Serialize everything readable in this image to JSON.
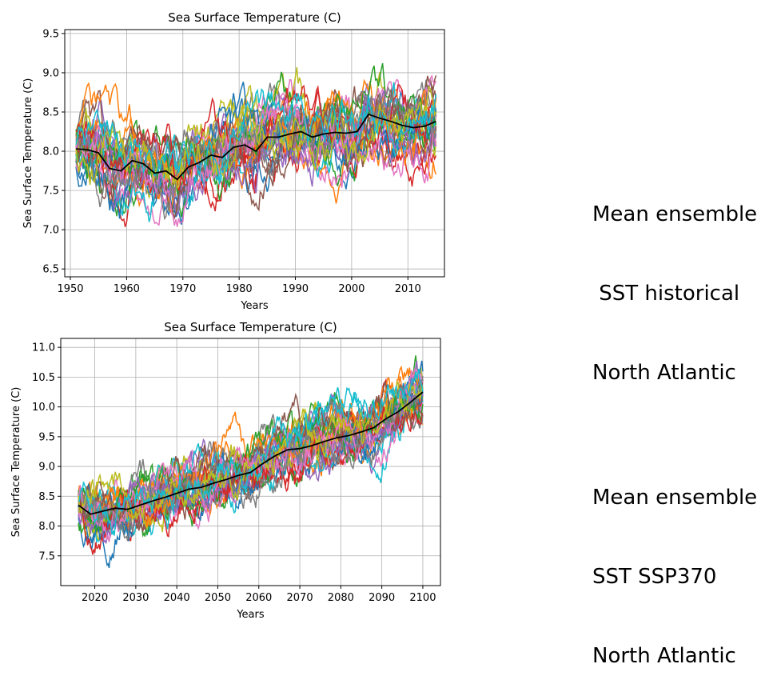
{
  "chart_data": [
    {
      "type": "line",
      "title": "Sea Surface Temperature (C)",
      "xlabel": "Years",
      "ylabel": "Sea Surface Temperature (C)",
      "xlim": [
        1949,
        2016.5
      ],
      "ylim": [
        6.4,
        9.55
      ],
      "xticks": [
        1950,
        1960,
        1970,
        1980,
        1990,
        2000,
        2010
      ],
      "yticks": [
        6.5,
        7.0,
        7.5,
        8.0,
        8.5,
        9.0,
        9.5
      ],
      "ytick_labels": [
        "6.5",
        "7.0",
        "7.5",
        "8.0",
        "8.5",
        "9.0",
        "9.5"
      ],
      "grid": true,
      "x_start": 1951,
      "x_end": 2015,
      "ensemble_size": 30,
      "ensemble_spread": 0.38,
      "mean_series": {
        "name": "Ensemble mean",
        "color": "#000000",
        "x": [
          1951,
          1953,
          1955,
          1957,
          1959,
          1961,
          1963,
          1965,
          1967,
          1969,
          1971,
          1973,
          1975,
          1977,
          1979,
          1981,
          1983,
          1985,
          1987,
          1989,
          1991,
          1993,
          1995,
          1997,
          1999,
          2001,
          2003,
          2005,
          2007,
          2009,
          2011,
          2013,
          2015
        ],
        "values": [
          8.03,
          8.02,
          7.98,
          7.78,
          7.75,
          7.88,
          7.84,
          7.72,
          7.75,
          7.64,
          7.8,
          7.86,
          7.95,
          7.92,
          8.05,
          8.08,
          8.0,
          8.18,
          8.18,
          8.22,
          8.25,
          8.18,
          8.22,
          8.24,
          8.23,
          8.25,
          8.47,
          8.42,
          8.38,
          8.33,
          8.3,
          8.32,
          8.38
        ]
      }
    },
    {
      "type": "line",
      "title": "Sea Surface Temperature (C)",
      "xlabel": "Years",
      "ylabel": "Sea Surface Temperature (C)",
      "xlim": [
        2011.7,
        2104.3
      ],
      "ylim": [
        7.0,
        11.15
      ],
      "xticks": [
        2020,
        2030,
        2040,
        2050,
        2060,
        2070,
        2080,
        2090,
        2100
      ],
      "yticks": [
        7.5,
        8.0,
        8.5,
        9.0,
        9.5,
        10.0,
        10.5,
        11.0
      ],
      "ytick_labels": [
        "7.5",
        "8.0",
        "8.5",
        "9.0",
        "9.5",
        "10.0",
        "10.5",
        "11.0"
      ],
      "grid": true,
      "x_start": 2016,
      "x_end": 2100,
      "ensemble_size": 30,
      "ensemble_spread": 0.36,
      "mean_series": {
        "name": "Ensemble mean",
        "color": "#000000",
        "x": [
          2016,
          2019,
          2022,
          2025,
          2028,
          2031,
          2034,
          2037,
          2040,
          2043,
          2046,
          2049,
          2052,
          2055,
          2058,
          2061,
          2064,
          2067,
          2070,
          2073,
          2076,
          2079,
          2082,
          2085,
          2088,
          2091,
          2094,
          2097,
          2100
        ],
        "values": [
          8.35,
          8.2,
          8.25,
          8.3,
          8.28,
          8.35,
          8.42,
          8.48,
          8.55,
          8.62,
          8.65,
          8.72,
          8.78,
          8.85,
          8.9,
          9.05,
          9.18,
          9.28,
          9.3,
          9.35,
          9.42,
          9.48,
          9.52,
          9.58,
          9.65,
          9.8,
          9.92,
          10.08,
          10.25
        ]
      }
    }
  ],
  "side_labels": {
    "top": [
      "Mean ensemble",
      " SST historical",
      "North Atlantic"
    ],
    "bottom": [
      "Mean ensemble",
      "SST SSP370",
      "North Atlantic"
    ]
  },
  "colors": {
    "palette": [
      "#1f77b4",
      "#ff7f0e",
      "#2ca02c",
      "#d62728",
      "#9467bd",
      "#8c564b",
      "#e377c2",
      "#7f7f7f",
      "#bcbd22",
      "#17becf"
    ],
    "grid": "#b0b0b0",
    "axis": "#000000"
  }
}
